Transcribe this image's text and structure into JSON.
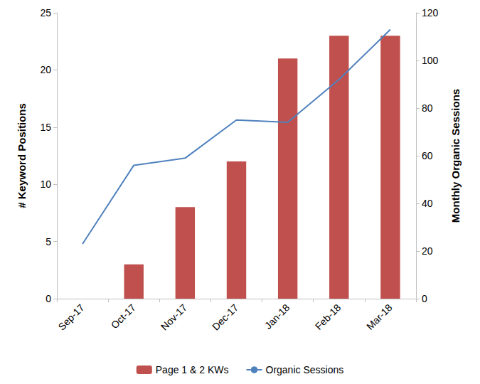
{
  "chart_data": {
    "type": "bar",
    "categories": [
      "Sep-17",
      "Oct-17",
      "Nov-17",
      "Dec-17",
      "Jan-18",
      "Feb-18",
      "Mar-18"
    ],
    "series": [
      {
        "name": "Page 1 & 2 KWs",
        "type": "bar",
        "color": "#c0504d",
        "values": [
          0,
          3,
          8,
          12,
          21,
          23,
          23
        ]
      },
      {
        "name": "Organic Sessions",
        "type": "line",
        "color": "#4f81bd",
        "axis": "y2",
        "marker": "none",
        "values": [
          23,
          56,
          59,
          75,
          74,
          92,
          113
        ]
      }
    ],
    "y_label": "# Keyword Positions",
    "y2_label": "Monthly Organic Sessions",
    "ylim": [
      0,
      25
    ],
    "yticks": [
      0,
      5,
      10,
      15,
      20,
      25
    ],
    "y2lim": [
      0,
      120
    ],
    "y2ticks": [
      0,
      20,
      40,
      60,
      80,
      100,
      120
    ],
    "grid": false,
    "legend": "bottom"
  }
}
